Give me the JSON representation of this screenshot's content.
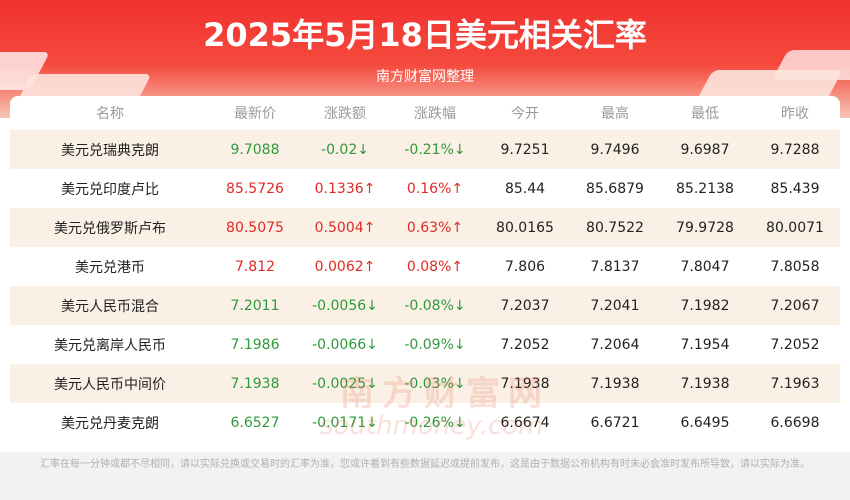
{
  "header": {
    "title": "2025年5月18日美元相关汇率",
    "subtitle": "南方财富网整理"
  },
  "table": {
    "columns": [
      "名称",
      "最新价",
      "涨跌额",
      "涨跌幅",
      "今开",
      "最高",
      "最低",
      "昨收"
    ],
    "rows": [
      {
        "name": "美元兑瑞典克朗",
        "latest": "9.7088",
        "change": "-0.02↓",
        "pct": "-0.21%↓",
        "open": "9.7251",
        "high": "9.7496",
        "low": "9.6987",
        "prev": "9.7288",
        "trend": "down"
      },
      {
        "name": "美元兑印度卢比",
        "latest": "85.5726",
        "change": "0.1336↑",
        "pct": "0.16%↑",
        "open": "85.44",
        "high": "85.6879",
        "low": "85.2138",
        "prev": "85.439",
        "trend": "up"
      },
      {
        "name": "美元兑俄罗斯卢布",
        "latest": "80.5075",
        "change": "0.5004↑",
        "pct": "0.63%↑",
        "open": "80.0165",
        "high": "80.7522",
        "low": "79.9728",
        "prev": "80.0071",
        "trend": "up"
      },
      {
        "name": "美元兑港币",
        "latest": "7.812",
        "change": "0.0062↑",
        "pct": "0.08%↑",
        "open": "7.806",
        "high": "7.8137",
        "low": "7.8047",
        "prev": "7.8058",
        "trend": "up"
      },
      {
        "name": "美元人民币混合",
        "latest": "7.2011",
        "change": "-0.0056↓",
        "pct": "-0.08%↓",
        "open": "7.2037",
        "high": "7.2041",
        "low": "7.1982",
        "prev": "7.2067",
        "trend": "down"
      },
      {
        "name": "美元兑离岸人民币",
        "latest": "7.1986",
        "change": "-0.0066↓",
        "pct": "-0.09%↓",
        "open": "7.2052",
        "high": "7.2064",
        "low": "7.1954",
        "prev": "7.2052",
        "trend": "down"
      },
      {
        "name": "美元人民币中间价",
        "latest": "7.1938",
        "change": "-0.0025↓",
        "pct": "-0.03%↓",
        "open": "7.1938",
        "high": "7.1938",
        "low": "7.1938",
        "prev": "7.1963",
        "trend": "down"
      },
      {
        "name": "美元兑丹麦克朗",
        "latest": "6.6527",
        "change": "-0.0171↓",
        "pct": "-0.26%↓",
        "open": "6.6674",
        "high": "6.6721",
        "low": "6.6495",
        "prev": "6.6698",
        "trend": "down"
      }
    ]
  },
  "watermark": {
    "line1": "南方财富网",
    "line2": "southmoney.com"
  },
  "footer": {
    "text": "汇率在每一分钟或都不尽相同，请以实际兑换或交易时的汇率为准，您或许看到有些数据延迟或提前发布，这是由于数据公布机构有时未必会准时发布所导致，请以实际为准。"
  },
  "colors": {
    "up": "#e02a25",
    "down": "#2e9a3a",
    "banner": "#f0312f",
    "row_alt": "#fbf0e6"
  }
}
